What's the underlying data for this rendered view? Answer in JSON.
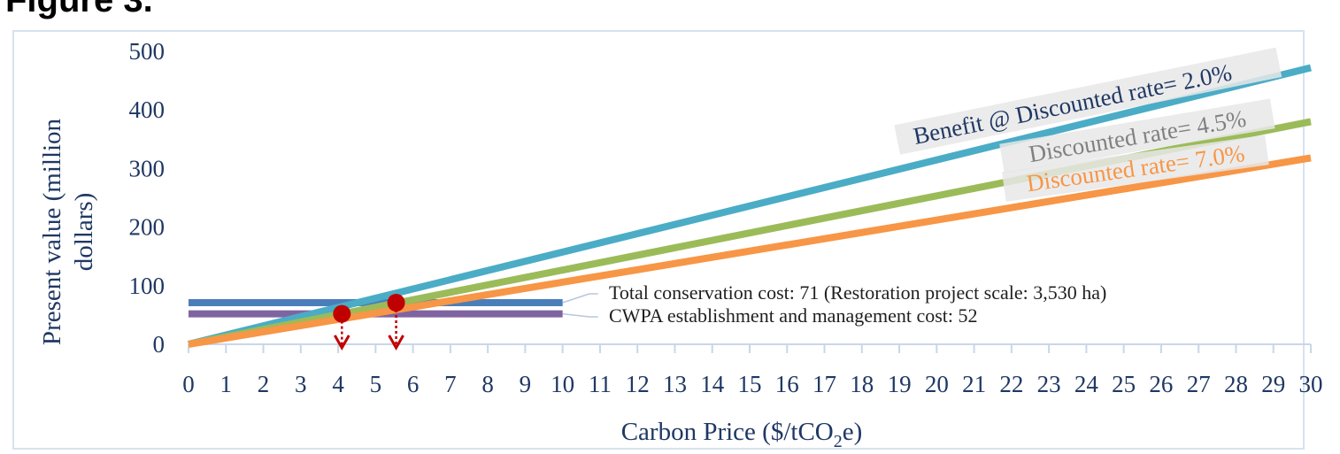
{
  "caption_fragment": "Figure 3.  ",
  "chart_data": {
    "type": "line",
    "xlabel": "Carbon Price ($/tCO2e)",
    "xlabel_parts": {
      "pre": "Carbon Price ($/tCO",
      "sub": "2",
      "post": "e)"
    },
    "ylabel_line1": "Present value (million",
    "ylabel_line2": "dollars)",
    "xlim": [
      0,
      30
    ],
    "ylim": [
      0,
      500
    ],
    "x_ticks": [
      "0",
      "1",
      "2",
      "3",
      "4",
      "5",
      "6",
      "7",
      "8",
      "9",
      "10",
      "11",
      "12",
      "13",
      "14",
      "15",
      "16",
      "17",
      "18",
      "19",
      "20",
      "21",
      "22",
      "23",
      "24",
      "25",
      "26",
      "27",
      "28",
      "29",
      "30"
    ],
    "y_ticks": [
      "0",
      "100",
      "200",
      "300",
      "400",
      "500"
    ],
    "series": [
      {
        "name": "Benefit @ Discounted rate= 2.0%",
        "color": "#4bacc6",
        "label_color": "#1f3864",
        "x": [
          0,
          30
        ],
        "y": [
          0,
          472
        ]
      },
      {
        "name": "Discounted rate= 4.5%",
        "color": "#9bbb59",
        "label_color": "#808080",
        "x": [
          0,
          30
        ],
        "y": [
          0,
          380
        ]
      },
      {
        "name": "Discounted rate= 7.0%",
        "color": "#f79646",
        "label_color": "#f79646",
        "x": [
          0,
          30
        ],
        "y": [
          0,
          318
        ]
      }
    ],
    "cost_lines": [
      {
        "text": "Total conservation cost: 71 (Restoration project scale: 3,530 ha)",
        "value": 71,
        "color": "#4a7ebb",
        "x": [
          0,
          10
        ]
      },
      {
        "text": "CWPA establishment and management cost: 52",
        "value": 52,
        "color": "#8064a2",
        "x": [
          0,
          10
        ]
      }
    ],
    "breakeven_points": [
      {
        "x": 4.1,
        "y": 52,
        "color": "#c00000"
      },
      {
        "x": 5.55,
        "y": 71,
        "color": "#c00000"
      }
    ]
  }
}
